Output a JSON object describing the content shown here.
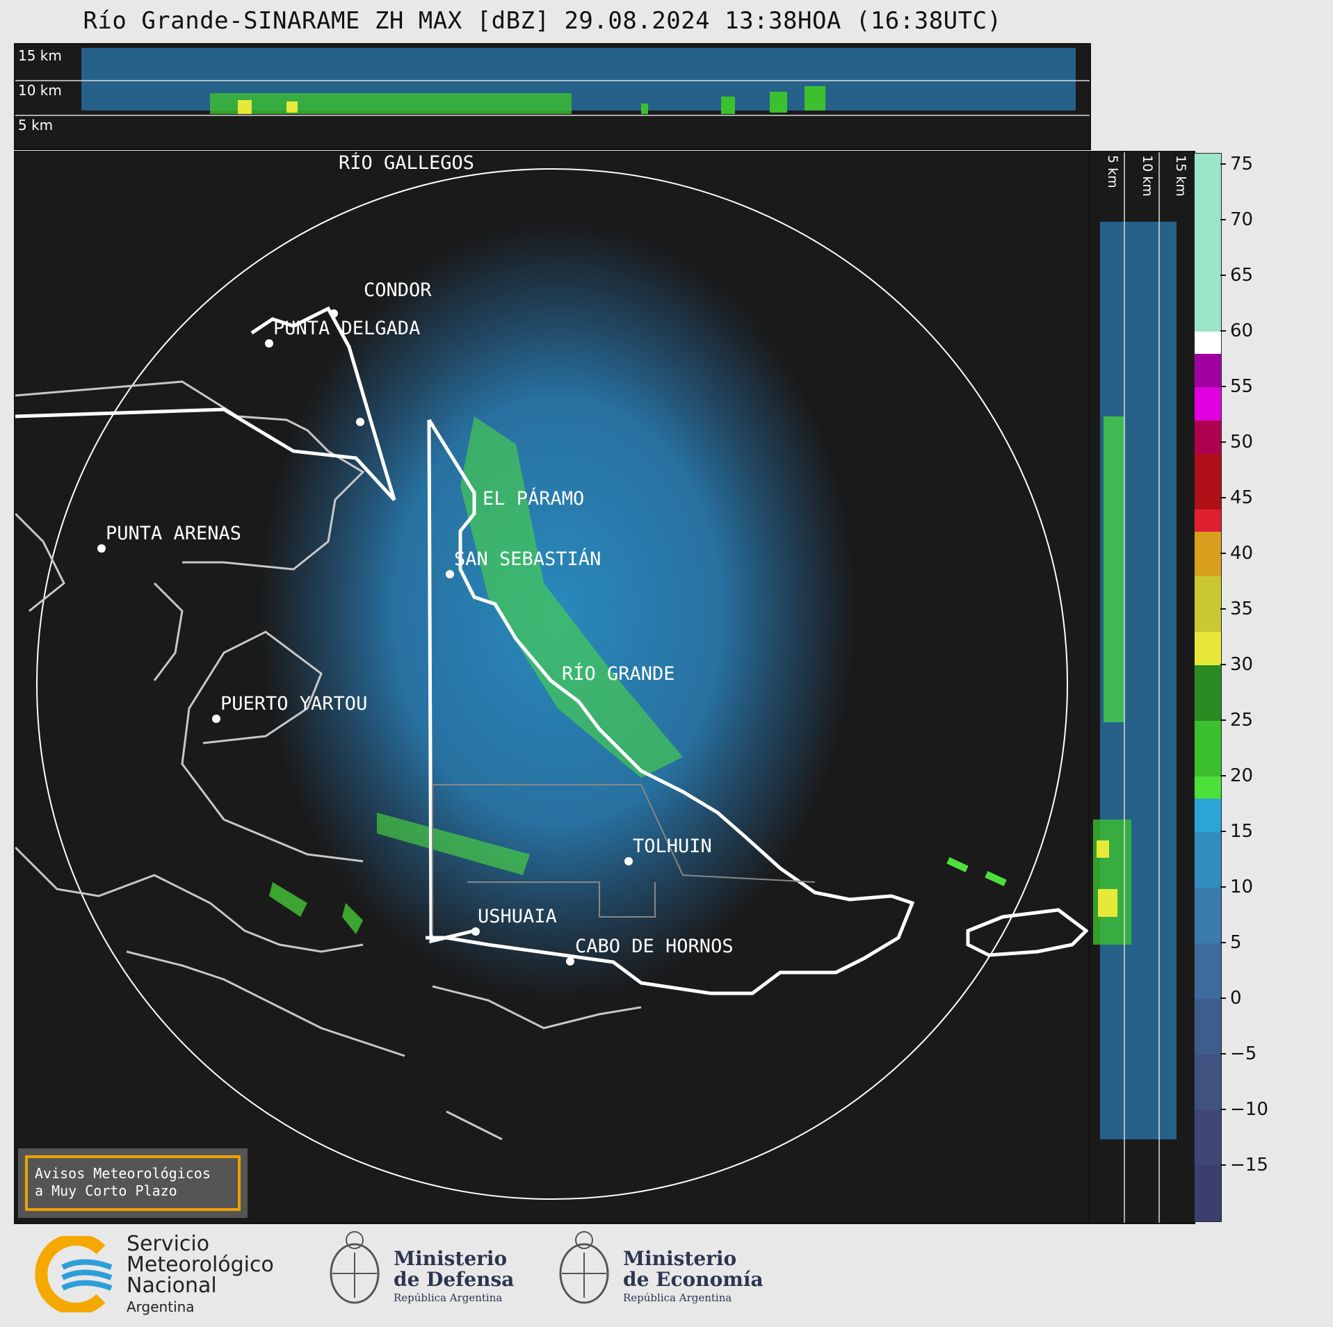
{
  "title": "Río Grande-SINARAME ZH MAX [dBZ] 29.08.2024 13:38HOA (16:38UTC)",
  "top_panel": {
    "height_labels": [
      "15 km",
      "10 km",
      "5 km"
    ]
  },
  "side_panel": {
    "height_labels": [
      "5 km",
      "10 km",
      "15 km"
    ]
  },
  "cities": [
    {
      "name": "RÍO GALLEGOS"
    },
    {
      "name": "CONDOR"
    },
    {
      "name": "PUNTA DELGADA"
    },
    {
      "name": "EL PÁRAMO"
    },
    {
      "name": "PUNTA ARENAS"
    },
    {
      "name": "SAN SEBASTIÁN"
    },
    {
      "name": "RÍO GRANDE"
    },
    {
      "name": "PUERTO YARTOU"
    },
    {
      "name": "TOLHUIN"
    },
    {
      "name": "USHUAIA"
    },
    {
      "name": "CABO DE HORNOS"
    }
  ],
  "colorbar": {
    "unit": "dBZ",
    "ticks": [
      "75",
      "70",
      "65",
      "60",
      "55",
      "50",
      "45",
      "40",
      "35",
      "30",
      "25",
      "20",
      "15",
      "10",
      "5",
      "0",
      "−5",
      "−10",
      "−15"
    ],
    "min": -20,
    "max": 76,
    "bands": [
      {
        "from": -20,
        "to": -15,
        "color": "#3a3f6e"
      },
      {
        "from": -15,
        "to": -10,
        "color": "#3e4775"
      },
      {
        "from": -10,
        "to": -5,
        "color": "#3f5280"
      },
      {
        "from": -5,
        "to": 0,
        "color": "#3f5d8c"
      },
      {
        "from": 0,
        "to": 5,
        "color": "#3d6c9c"
      },
      {
        "from": 5,
        "to": 10,
        "color": "#3a7cad"
      },
      {
        "from": 10,
        "to": 15,
        "color": "#328dbf"
      },
      {
        "from": 15,
        "to": 18,
        "color": "#2aa5d8"
      },
      {
        "from": 18,
        "to": 20,
        "color": "#4ce03a"
      },
      {
        "from": 20,
        "to": 25,
        "color": "#3cc02e"
      },
      {
        "from": 25,
        "to": 30,
        "color": "#2b8a22"
      },
      {
        "from": 30,
        "to": 33,
        "color": "#e8e83a"
      },
      {
        "from": 33,
        "to": 38,
        "color": "#c8c832"
      },
      {
        "from": 38,
        "to": 42,
        "color": "#d9a020"
      },
      {
        "from": 42,
        "to": 44,
        "color": "#e02030"
      },
      {
        "from": 44,
        "to": 49,
        "color": "#b01018"
      },
      {
        "from": 49,
        "to": 52,
        "color": "#b00050"
      },
      {
        "from": 52,
        "to": 55,
        "color": "#e000e0"
      },
      {
        "from": 55,
        "to": 58,
        "color": "#a000a0"
      },
      {
        "from": 58,
        "to": 60,
        "color": "#ffffff"
      },
      {
        "from": 60,
        "to": 76,
        "color": "#9ae6c6"
      }
    ]
  },
  "notice": {
    "line1": "Avisos Meteorológicos",
    "line2": "a Muy Corto Plazo"
  },
  "footer": {
    "smn": {
      "line1": "Servicio",
      "line2": "Meteorológico",
      "line3": "Nacional",
      "line4": "Argentina"
    },
    "defensa": {
      "line1": "Ministerio",
      "line2": "de Defensa",
      "line3": "República Argentina"
    },
    "economia": {
      "line1": "Ministerio",
      "line2": "de Economía",
      "line3": "República Argentina"
    }
  }
}
